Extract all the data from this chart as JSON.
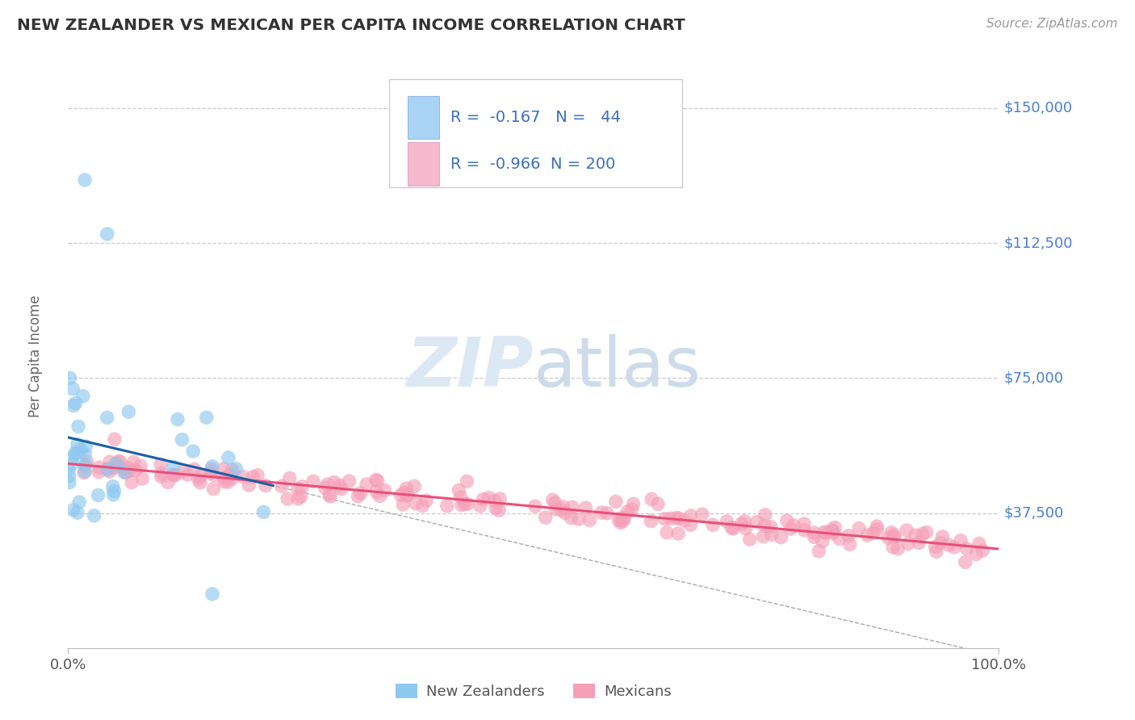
{
  "title": "NEW ZEALANDER VS MEXICAN PER CAPITA INCOME CORRELATION CHART",
  "source_text": "Source: ZipAtlas.com",
  "ylabel": "Per Capita Income",
  "xlim": [
    0.0,
    1.0
  ],
  "ylim": [
    0,
    162000
  ],
  "yticks": [
    37500,
    75000,
    112500,
    150000
  ],
  "ytick_labels": [
    "$37,500",
    "$75,000",
    "$112,500",
    "$150,000"
  ],
  "xtick_vals": [
    0.0,
    1.0
  ],
  "xtick_labels": [
    "0.0%",
    "100.0%"
  ],
  "nz_color": "#8ec8f0",
  "nz_color_line": "#1a5fa8",
  "mexican_color": "#f5a0b8",
  "mexican_color_line": "#e8507a",
  "legend_box_color_nz": "#aad4f5",
  "legend_box_color_mx": "#f5b8cc",
  "R_nz": -0.167,
  "N_nz": 44,
  "R_mx": -0.966,
  "N_mx": 200,
  "background_color": "#ffffff",
  "grid_color": "#cccccc",
  "title_color": "#333333",
  "axis_label_color": "#666666",
  "tick_label_color_y": "#4a7fd4",
  "tick_label_color_x": "#555555",
  "legend_label_nz": "New Zealanders",
  "legend_label_mx": "Mexicans",
  "watermark_color": "#dde8f5",
  "source_color": "#999999"
}
